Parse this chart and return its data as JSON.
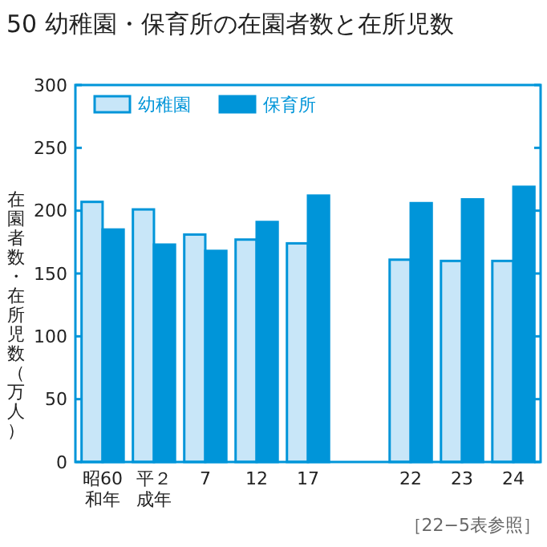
{
  "chart_data": {
    "type": "bar",
    "title": "50  幼稚園・保育所の在園者数と在所児数",
    "ylabel": "在園者数・在所児数（万人）",
    "categories": [
      "昭60和年",
      "平２成年",
      "7",
      "12",
      "17",
      null,
      "22",
      "23",
      "24"
    ],
    "series": [
      {
        "name": "幼稚園",
        "color": "#c8e6f8",
        "values": [
          207,
          201,
          181,
          177,
          174,
          null,
          161,
          160,
          160
        ]
      },
      {
        "name": "保育所",
        "color": "#0095d9",
        "values": [
          185,
          173,
          168,
          191,
          212,
          null,
          206,
          209,
          219
        ]
      }
    ],
    "ylim": [
      0,
      300
    ],
    "yticks": [
      0,
      50,
      100,
      150,
      200,
      250,
      300
    ],
    "grid": false,
    "legend": "top left",
    "annotations": [
      "［22−5表参照］"
    ]
  }
}
